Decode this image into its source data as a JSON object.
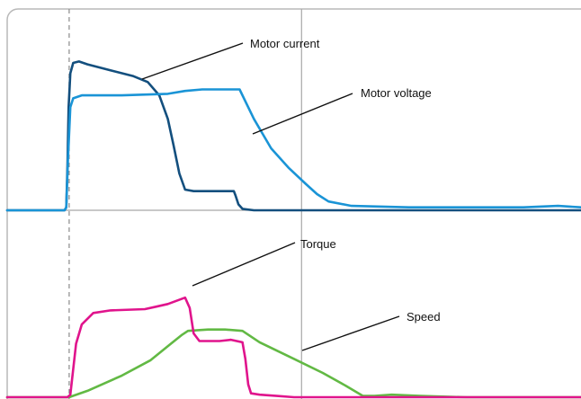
{
  "chart_data": {
    "type": "line",
    "title": "",
    "xlabel": "",
    "ylabel": "",
    "grid": false,
    "panels": [
      {
        "name": "upper",
        "series": [
          {
            "name": "Motor current",
            "color": "#134f7e",
            "points": [
              [
                0,
                0
              ],
              [
                0.062,
                0
              ],
              [
                0.1,
                0
              ],
              [
                0.103,
                0.02
              ],
              [
                0.105,
                0.3
              ],
              [
                0.107,
                0.7
              ],
              [
                0.11,
                0.93
              ],
              [
                0.115,
                1.0
              ],
              [
                0.125,
                1.01
              ],
              [
                0.14,
                0.99
              ],
              [
                0.18,
                0.95
              ],
              [
                0.22,
                0.91
              ],
              [
                0.245,
                0.87
              ],
              [
                0.265,
                0.78
              ],
              [
                0.28,
                0.62
              ],
              [
                0.29,
                0.44
              ],
              [
                0.3,
                0.25
              ],
              [
                0.31,
                0.14
              ],
              [
                0.325,
                0.13
              ],
              [
                0.38,
                0.13
              ],
              [
                0.395,
                0.13
              ],
              [
                0.398,
                0.1
              ],
              [
                0.403,
                0.04
              ],
              [
                0.41,
                0.01
              ],
              [
                0.43,
                0
              ],
              [
                1.0,
                0
              ]
            ]
          },
          {
            "name": "Motor voltage",
            "color": "#1a94d6",
            "points": [
              [
                0,
                0
              ],
              [
                0.1,
                0
              ],
              [
                0.103,
                0.02
              ],
              [
                0.106,
                0.35
              ],
              [
                0.11,
                0.7
              ],
              [
                0.115,
                0.76
              ],
              [
                0.13,
                0.78
              ],
              [
                0.2,
                0.78
              ],
              [
                0.28,
                0.79
              ],
              [
                0.31,
                0.81
              ],
              [
                0.34,
                0.82
              ],
              [
                0.405,
                0.82
              ],
              [
                0.43,
                0.62
              ],
              [
                0.46,
                0.42
              ],
              [
                0.49,
                0.29
              ],
              [
                0.52,
                0.18
              ],
              [
                0.54,
                0.11
              ],
              [
                0.56,
                0.06
              ],
              [
                0.6,
                0.03
              ],
              [
                0.7,
                0.02
              ],
              [
                0.8,
                0.02
              ],
              [
                0.9,
                0.02
              ],
              [
                0.96,
                0.03
              ],
              [
                1.0,
                0.02
              ]
            ]
          }
        ]
      },
      {
        "name": "lower",
        "series": [
          {
            "name": "Torque",
            "color": "#e0148c",
            "points": [
              [
                0,
                0
              ],
              [
                0.105,
                0
              ],
              [
                0.11,
                0.02
              ],
              [
                0.115,
                0.22
              ],
              [
                0.12,
                0.42
              ],
              [
                0.13,
                0.57
              ],
              [
                0.15,
                0.66
              ],
              [
                0.18,
                0.68
              ],
              [
                0.24,
                0.69
              ],
              [
                0.26,
                0.71
              ],
              [
                0.28,
                0.73
              ],
              [
                0.31,
                0.78
              ],
              [
                0.318,
                0.7
              ],
              [
                0.325,
                0.5
              ],
              [
                0.335,
                0.44
              ],
              [
                0.37,
                0.44
              ],
              [
                0.39,
                0.45
              ],
              [
                0.41,
                0.43
              ],
              [
                0.415,
                0.3
              ],
              [
                0.42,
                0.1
              ],
              [
                0.425,
                0.03
              ],
              [
                0.44,
                0.02
              ],
              [
                0.47,
                0.01
              ],
              [
                0.5,
                0
              ],
              [
                1.0,
                0
              ]
            ]
          },
          {
            "name": "Speed",
            "color": "#62b944",
            "points": [
              [
                0,
                0
              ],
              [
                0.108,
                0
              ],
              [
                0.14,
                0.05
              ],
              [
                0.2,
                0.17
              ],
              [
                0.25,
                0.29
              ],
              [
                0.28,
                0.4
              ],
              [
                0.305,
                0.49
              ],
              [
                0.315,
                0.52
              ],
              [
                0.35,
                0.53
              ],
              [
                0.38,
                0.53
              ],
              [
                0.41,
                0.52
              ],
              [
                0.44,
                0.43
              ],
              [
                0.5,
                0.3
              ],
              [
                0.55,
                0.19
              ],
              [
                0.59,
                0.09
              ],
              [
                0.62,
                0.01
              ],
              [
                0.64,
                0.01
              ],
              [
                0.67,
                0.02
              ],
              [
                0.72,
                0.01
              ],
              [
                0.8,
                0
              ],
              [
                1.0,
                0
              ]
            ]
          }
        ]
      }
    ],
    "annotations": [
      {
        "label": "Motor current",
        "panel": "upper",
        "series": "Motor current"
      },
      {
        "label": "Motor voltage",
        "panel": "upper",
        "series": "Motor voltage"
      },
      {
        "label": "Torque",
        "panel": "lower",
        "series": "Torque"
      },
      {
        "label": "Speed",
        "panel": "lower",
        "series": "Speed"
      }
    ],
    "reference_lines": [
      {
        "style": "dashed",
        "x": 0.108
      },
      {
        "style": "solid",
        "x": 0.513
      }
    ]
  }
}
